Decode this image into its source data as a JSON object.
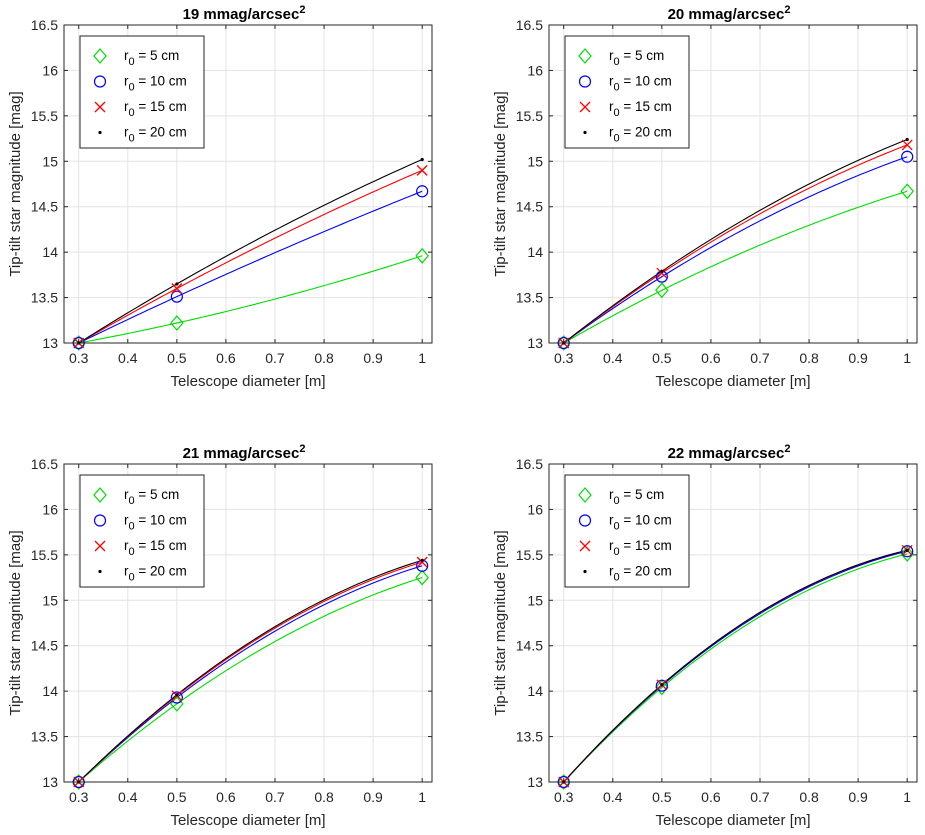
{
  "figure": {
    "marker_colors": {
      "r0_5": "#00dd00",
      "r0_10": "#0000ff",
      "r0_15": "#ff0000",
      "r0_20": "#000000"
    }
  },
  "chart_data": [
    {
      "type": "line",
      "title": "19 mmag/arcsec",
      "title_sup": "2",
      "xlabel": "Telescope diameter [m]",
      "ylabel": "Tip-tilt star magnitude [mag]",
      "xlim": [
        0.27,
        1.02
      ],
      "ylim": [
        13,
        16.5
      ],
      "xticks": [
        "0.3",
        "0.4",
        "0.5",
        "0.6",
        "0.7",
        "0.8",
        "0.9",
        "1"
      ],
      "yticks": [
        "13",
        "13.5",
        "14",
        "14.5",
        "15",
        "15.5",
        "16",
        "16.5"
      ],
      "grid": true,
      "legend_position": "top-left",
      "x": [
        0.3,
        0.5,
        1.0
      ],
      "series": [
        {
          "name": "r0 = 5 cm",
          "marker": "diamond",
          "values": [
            13.0,
            13.22,
            13.96
          ]
        },
        {
          "name": "r0 = 10 cm",
          "marker": "circle",
          "values": [
            13.0,
            13.51,
            14.67
          ]
        },
        {
          "name": "r0 = 15 cm",
          "marker": "x",
          "values": [
            13.0,
            13.6,
            14.9
          ]
        },
        {
          "name": "r0 = 20 cm",
          "marker": "point",
          "values": [
            13.0,
            13.65,
            15.02
          ]
        }
      ]
    },
    {
      "type": "line",
      "title": "20 mmag/arcsec",
      "title_sup": "2",
      "xlabel": "Telescope diameter [m]",
      "ylabel": "Tip-tilt star magnitude [mag]",
      "xlim": [
        0.27,
        1.02
      ],
      "ylim": [
        13,
        16.5
      ],
      "xticks": [
        "0.3",
        "0.4",
        "0.5",
        "0.6",
        "0.7",
        "0.8",
        "0.9",
        "1"
      ],
      "yticks": [
        "13",
        "13.5",
        "14",
        "14.5",
        "15",
        "15.5",
        "16",
        "16.5"
      ],
      "grid": true,
      "legend_position": "top-left",
      "x": [
        0.3,
        0.5,
        1.0
      ],
      "series": [
        {
          "name": "r0 = 5 cm",
          "marker": "diamond",
          "values": [
            13.0,
            13.58,
            14.67
          ]
        },
        {
          "name": "r0 = 10 cm",
          "marker": "circle",
          "values": [
            13.0,
            13.73,
            15.05
          ]
        },
        {
          "name": "r0 = 15 cm",
          "marker": "x",
          "values": [
            13.0,
            13.77,
            15.18
          ]
        },
        {
          "name": "r0 = 20 cm",
          "marker": "point",
          "values": [
            13.0,
            13.79,
            15.24
          ]
        }
      ]
    },
    {
      "type": "line",
      "title": "21 mmag/arcsec",
      "title_sup": "2",
      "xlabel": "Telescope diameter [m]",
      "ylabel": "Tip-tilt star magnitude [mag]",
      "xlim": [
        0.27,
        1.02
      ],
      "ylim": [
        13,
        16.5
      ],
      "xticks": [
        "0.3",
        "0.4",
        "0.5",
        "0.6",
        "0.7",
        "0.8",
        "0.9",
        "1"
      ],
      "yticks": [
        "13",
        "13.5",
        "14",
        "14.5",
        "15",
        "15.5",
        "16",
        "16.5"
      ],
      "grid": true,
      "legend_position": "top-left",
      "x": [
        0.3,
        0.5,
        1.0
      ],
      "series": [
        {
          "name": "r0 = 5 cm",
          "marker": "diamond",
          "values": [
            13.0,
            13.86,
            15.25
          ]
        },
        {
          "name": "r0 = 10 cm",
          "marker": "circle",
          "values": [
            13.0,
            13.93,
            15.38
          ]
        },
        {
          "name": "r0 = 15 cm",
          "marker": "x",
          "values": [
            13.0,
            13.95,
            15.42
          ]
        },
        {
          "name": "r0 = 20 cm",
          "marker": "point",
          "values": [
            13.0,
            13.96,
            15.44
          ]
        }
      ]
    },
    {
      "type": "line",
      "title": "22 mmag/arcsec",
      "title_sup": "2",
      "xlabel": "Telescope diameter [m]",
      "ylabel": "Tip-tilt star magnitude [mag]",
      "xlim": [
        0.27,
        1.02
      ],
      "ylim": [
        13,
        16.5
      ],
      "xticks": [
        "0.3",
        "0.4",
        "0.5",
        "0.6",
        "0.7",
        "0.8",
        "0.9",
        "1"
      ],
      "yticks": [
        "13",
        "13.5",
        "14",
        "14.5",
        "15",
        "15.5",
        "16",
        "16.5"
      ],
      "grid": true,
      "legend_position": "top-left",
      "x": [
        0.3,
        0.5,
        1.0
      ],
      "series": [
        {
          "name": "r0 = 5 cm",
          "marker": "diamond",
          "values": [
            13.0,
            14.04,
            15.51
          ]
        },
        {
          "name": "r0 = 10 cm",
          "marker": "circle",
          "values": [
            13.0,
            14.06,
            15.54
          ]
        },
        {
          "name": "r0 = 15 cm",
          "marker": "x",
          "values": [
            13.0,
            14.07,
            15.55
          ]
        },
        {
          "name": "r0 = 20 cm",
          "marker": "point",
          "values": [
            13.0,
            14.07,
            15.55
          ]
        }
      ]
    }
  ]
}
